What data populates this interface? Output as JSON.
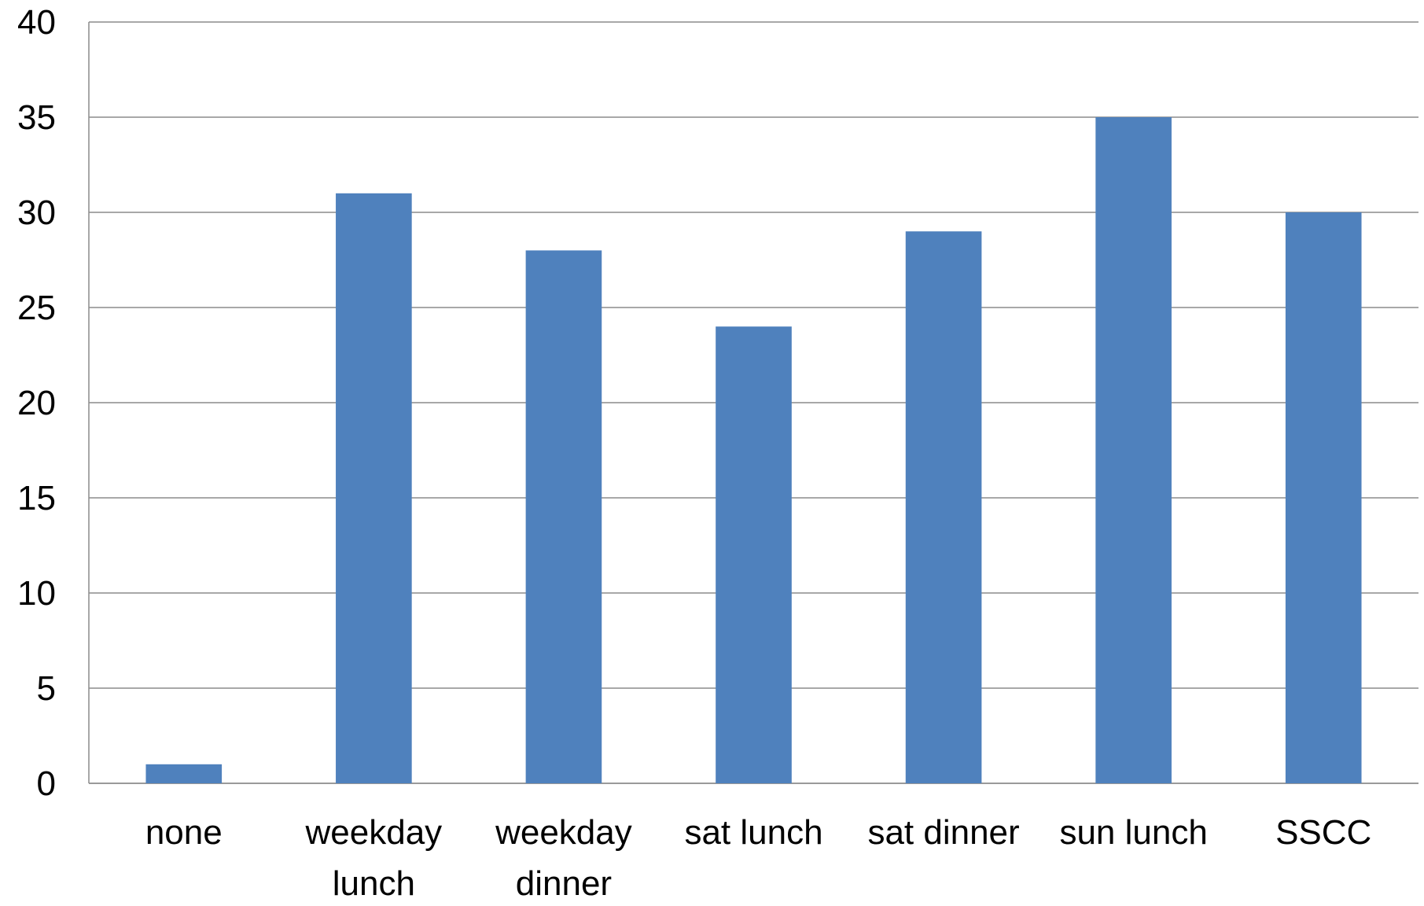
{
  "chart_data": {
    "type": "bar",
    "categories": [
      "none",
      "weekday lunch",
      "weekday dinner",
      "sat lunch",
      "sat dinner",
      "sun lunch",
      "SSCC"
    ],
    "values": [
      1,
      31,
      28,
      24,
      29,
      35,
      30
    ],
    "color": "#4f81bd",
    "ylim": [
      0,
      40
    ],
    "yticks": [
      0,
      5,
      10,
      15,
      20,
      25,
      30,
      35,
      40
    ],
    "grid": true
  }
}
